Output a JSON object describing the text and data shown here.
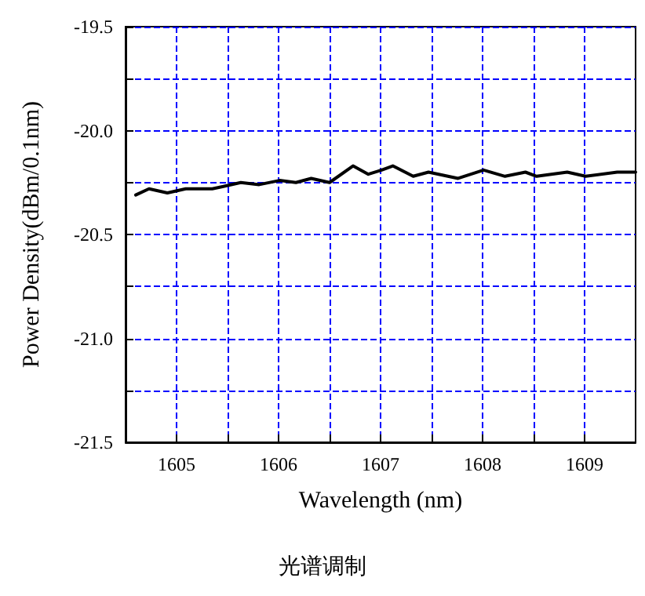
{
  "chart_data": {
    "type": "line",
    "xlabel": "Wavelength (nm)",
    "ylabel": "Power Density(dBm/0.1nm)",
    "annotations": [
      "光谱调制"
    ],
    "x": [
      1604.6,
      1604.73,
      1604.91,
      1605.09,
      1605.35,
      1605.45,
      1605.63,
      1605.81,
      1606.01,
      1606.17,
      1606.32,
      1606.5,
      1606.73,
      1606.88,
      1607.01,
      1607.12,
      1607.32,
      1607.47,
      1607.76,
      1608.01,
      1608.22,
      1608.42,
      1608.53,
      1608.83,
      1609.01,
      1609.32,
      1609.5
    ],
    "series": [
      {
        "color": "#000000",
        "values": [
          -20.31,
          -20.28,
          -20.3,
          -20.28,
          -20.28,
          -20.27,
          -20.25,
          -20.26,
          -20.24,
          -20.25,
          -20.23,
          -20.25,
          -20.17,
          -20.21,
          -20.19,
          -20.17,
          -20.22,
          -20.2,
          -20.23,
          -20.19,
          -20.22,
          -20.2,
          -20.22,
          -20.2,
          -20.22,
          -20.2,
          -20.2
        ]
      }
    ],
    "xlim": [
      1604.5,
      1609.5
    ],
    "xticks": [
      1605,
      {
        "value": 1605.5,
        "label": null
      },
      1606,
      {
        "value": 1606.5,
        "label": null
      },
      1607,
      {
        "value": 1607.5,
        "label": null
      },
      1608,
      {
        "value": 1608.5,
        "label": null
      },
      1609
    ],
    "ylim": [
      -21.5,
      -19.5
    ],
    "yticks": [
      {
        "value": -21.5,
        "label": "-21.5"
      },
      {
        "value": -21.25,
        "label": null
      },
      {
        "value": -21,
        "label": "-21.0"
      },
      {
        "value": -20.75,
        "label": null
      },
      {
        "value": -20.5,
        "label": "-20.5"
      },
      {
        "value": -20.25,
        "label": null
      },
      {
        "value": -20,
        "label": "-20.0"
      },
      {
        "value": -19.75,
        "label": null
      },
      {
        "value": -19.5,
        "label": "-19.5"
      }
    ],
    "grid": true,
    "marker": "none",
    "line_style": "solid"
  }
}
